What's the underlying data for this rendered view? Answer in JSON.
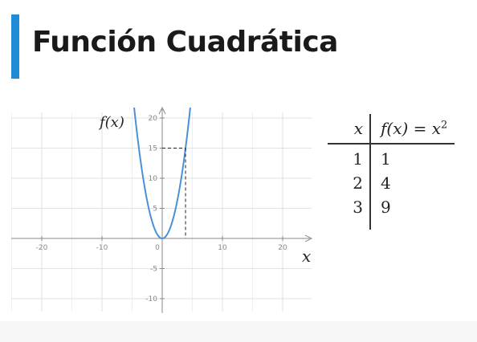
{
  "page": {
    "title": "Función Cuadrática",
    "accent_color": "#1f8ad6"
  },
  "chart_data": {
    "type": "line",
    "function": "x^2",
    "y_axis_label": "f(x)",
    "x_axis_label": "x",
    "xlim": [
      -25,
      25
    ],
    "ylim": [
      -12,
      21
    ],
    "x_ticks": [
      -20,
      -10,
      0,
      10,
      20
    ],
    "x_tick_labels": [
      "-20",
      "-10",
      "0",
      "10",
      "20"
    ],
    "y_ticks": [
      -10,
      -5,
      5,
      10,
      15,
      20
    ],
    "y_tick_labels": [
      "-10",
      "-5",
      "5",
      "10",
      "15",
      "20"
    ],
    "grid": true,
    "curve_color": "#4a90d9",
    "highlight_point": {
      "x": 3.873,
      "y": 15
    },
    "series": [
      {
        "x": [
          -4.9,
          -4,
          -3,
          -2,
          -1,
          0,
          1,
          2,
          3,
          4,
          4.9
        ],
        "y": [
          24.01,
          16,
          9,
          4,
          1,
          0,
          1,
          4,
          9,
          16,
          24.01
        ]
      }
    ]
  },
  "table": {
    "header_x": "x",
    "header_f_prefix": "f(x) = x",
    "header_f_exp": "2",
    "rows": [
      {
        "x": "1",
        "fx": "1"
      },
      {
        "x": "2",
        "fx": "4"
      },
      {
        "x": "3",
        "fx": "9"
      }
    ]
  }
}
